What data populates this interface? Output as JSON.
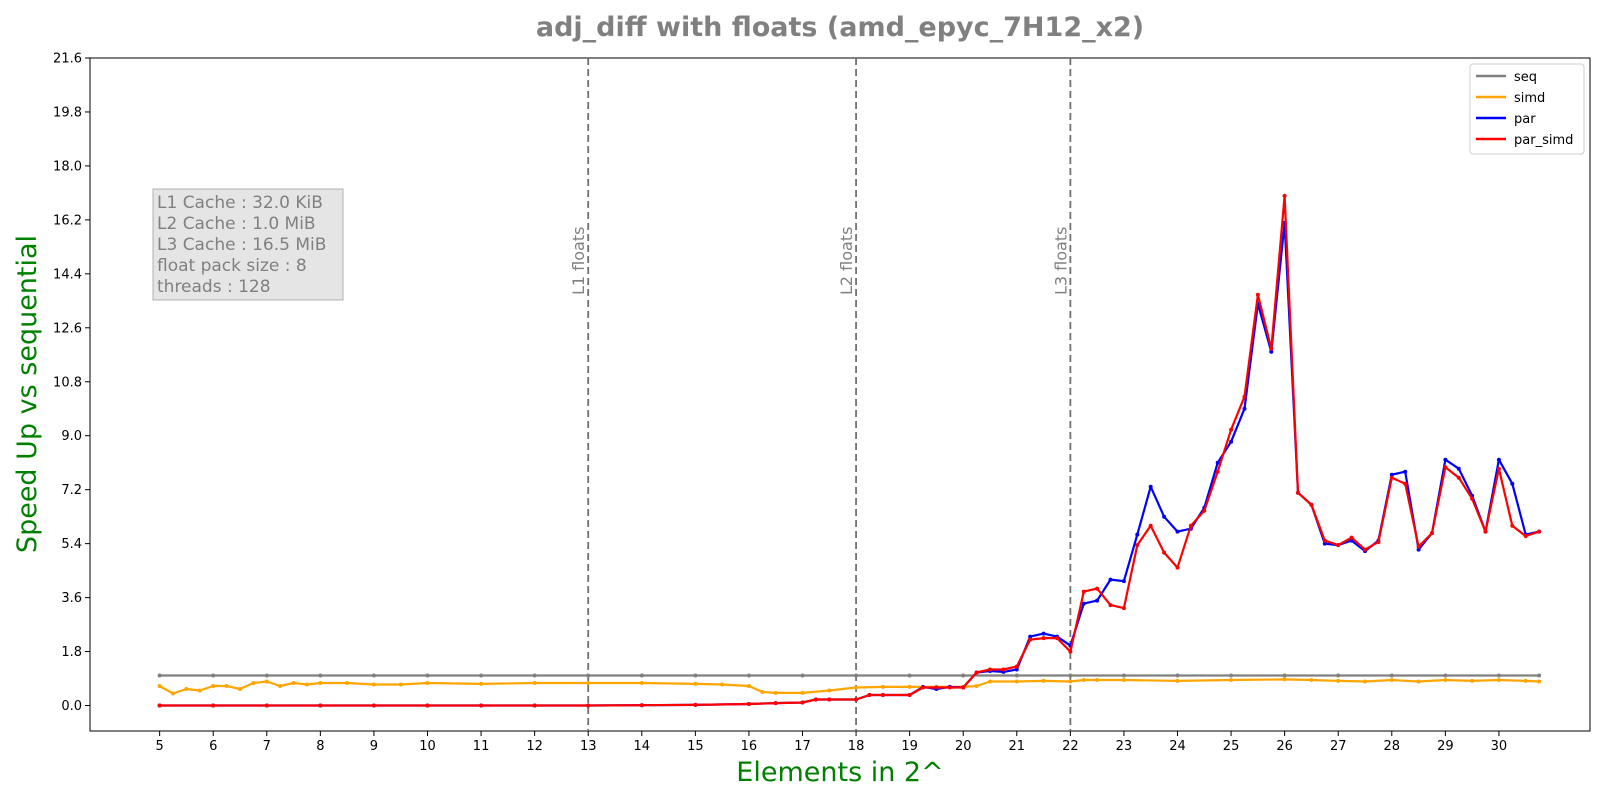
{
  "chart_data": {
    "type": "line",
    "title": "adj_diff with floats  (amd_epyc_7H12_x2)",
    "xlabel": "Elements in 2^",
    "ylabel": "Speed Up vs sequential",
    "xlim": [
      3.7,
      31.7
    ],
    "ylim": [
      -0.85,
      21.6
    ],
    "xticks": [
      5,
      6,
      7,
      8,
      9,
      10,
      11,
      12,
      13,
      14,
      15,
      16,
      17,
      18,
      19,
      20,
      21,
      22,
      23,
      24,
      25,
      26,
      27,
      28,
      29,
      30
    ],
    "yticks": [
      "0.0",
      "1.8",
      "3.6",
      "5.4",
      "7.2",
      "9.0",
      "10.8",
      "12.6",
      "14.4",
      "16.2",
      "18.0",
      "19.8",
      "21.6"
    ],
    "legend_position": "top-right",
    "grid": false,
    "cache_lines": [
      {
        "x": 13,
        "label": "L1 floats"
      },
      {
        "x": 18,
        "label": "L2 floats"
      },
      {
        "x": 22,
        "label": "L3 floats"
      }
    ],
    "info_box": [
      "L1 Cache : 32.0 KiB",
      "L2 Cache : 1.0 MiB",
      "L3 Cache : 16.5 MiB",
      "float pack size : 8",
      "threads : 128"
    ],
    "series": [
      {
        "name": "seq",
        "color": "#808080",
        "x": [
          5,
          6,
          7,
          8,
          9,
          10,
          11,
          12,
          13,
          14,
          15,
          16,
          17,
          18,
          19,
          20,
          21,
          22,
          23,
          24,
          25,
          26,
          27,
          28,
          29,
          30,
          30.75
        ],
        "y": [
          1.0,
          1.0,
          1.0,
          1.0,
          1.0,
          1.0,
          1.0,
          1.0,
          1.0,
          1.0,
          1.0,
          1.0,
          1.0,
          1.0,
          1.0,
          1.0,
          1.0,
          1.0,
          1.0,
          1.0,
          1.0,
          1.0,
          1.0,
          1.0,
          1.0,
          1.0,
          1.0
        ]
      },
      {
        "name": "simd",
        "color": "#ffa500",
        "x": [
          5,
          5.25,
          5.5,
          5.75,
          6,
          6.25,
          6.5,
          6.75,
          7,
          7.25,
          7.5,
          7.75,
          8,
          8.5,
          9,
          9.5,
          10,
          11,
          12,
          13,
          14,
          15,
          15.5,
          16,
          16.25,
          16.5,
          17,
          17.5,
          18,
          18.5,
          19,
          19.5,
          20,
          20.25,
          20.5,
          21,
          21.5,
          22,
          22.25,
          22.5,
          23,
          24,
          25,
          26,
          26.5,
          27,
          27.5,
          28,
          28.5,
          29,
          29.5,
          30,
          30.5,
          30.75
        ],
        "y": [
          0.65,
          0.4,
          0.55,
          0.5,
          0.65,
          0.65,
          0.55,
          0.75,
          0.8,
          0.65,
          0.75,
          0.7,
          0.75,
          0.75,
          0.7,
          0.7,
          0.75,
          0.72,
          0.75,
          0.75,
          0.75,
          0.72,
          0.7,
          0.65,
          0.45,
          0.42,
          0.42,
          0.5,
          0.6,
          0.62,
          0.62,
          0.62,
          0.62,
          0.65,
          0.8,
          0.8,
          0.82,
          0.8,
          0.85,
          0.85,
          0.85,
          0.82,
          0.85,
          0.87,
          0.85,
          0.82,
          0.8,
          0.85,
          0.8,
          0.85,
          0.82,
          0.85,
          0.82,
          0.8
        ]
      },
      {
        "name": "par",
        "color": "#0000ff",
        "x": [
          5,
          6,
          7,
          8,
          9,
          10,
          11,
          12,
          13,
          14,
          15,
          16,
          16.5,
          17,
          17.25,
          17.5,
          18,
          18.25,
          18.5,
          19,
          19.25,
          19.5,
          19.75,
          20,
          20.25,
          20.5,
          20.75,
          21,
          21.25,
          21.5,
          21.75,
          22,
          22.25,
          22.5,
          22.75,
          23,
          23.25,
          23.5,
          23.75,
          24,
          24.25,
          24.5,
          24.75,
          25,
          25.25,
          25.5,
          25.75,
          26,
          26.25,
          26.5,
          26.75,
          27,
          27.25,
          27.5,
          27.75,
          28,
          28.25,
          28.5,
          28.75,
          29,
          29.25,
          29.5,
          29.75,
          30,
          30.25,
          30.5,
          30.75
        ],
        "y": [
          0.0,
          0.0,
          0.0,
          0.0,
          0.0,
          0.0,
          0.0,
          0.0,
          0.0,
          0.01,
          0.02,
          0.05,
          0.08,
          0.1,
          0.2,
          0.2,
          0.2,
          0.35,
          0.35,
          0.35,
          0.62,
          0.55,
          0.62,
          0.6,
          1.1,
          1.15,
          1.12,
          1.2,
          2.3,
          2.4,
          2.3,
          2.0,
          3.4,
          3.5,
          4.2,
          4.15,
          5.7,
          7.3,
          6.3,
          5.8,
          5.9,
          6.6,
          8.1,
          8.8,
          9.9,
          13.4,
          11.8,
          16.1,
          7.1,
          6.7,
          5.4,
          5.35,
          5.5,
          5.15,
          5.5,
          7.7,
          7.8,
          5.2,
          5.75,
          8.2,
          7.9,
          7.0,
          5.8,
          8.2,
          7.4,
          5.7,
          5.8
        ]
      },
      {
        "name": "par_simd",
        "color": "#ff0000",
        "x": [
          5,
          6,
          7,
          8,
          9,
          10,
          11,
          12,
          13,
          14,
          15,
          16,
          16.5,
          17,
          17.25,
          17.5,
          18,
          18.25,
          18.5,
          19,
          19.25,
          19.5,
          19.75,
          20,
          20.25,
          20.5,
          20.75,
          21,
          21.25,
          21.5,
          21.75,
          22,
          22.25,
          22.5,
          22.75,
          23,
          23.25,
          23.5,
          23.75,
          24,
          24.25,
          24.5,
          24.75,
          25,
          25.25,
          25.5,
          25.75,
          26,
          26.25,
          26.5,
          26.75,
          27,
          27.25,
          27.5,
          27.75,
          28,
          28.25,
          28.5,
          28.75,
          29,
          29.25,
          29.5,
          29.75,
          30,
          30.25,
          30.5,
          30.75
        ],
        "y": [
          0.0,
          0.0,
          0.0,
          0.0,
          0.0,
          0.0,
          0.0,
          0.0,
          0.0,
          0.01,
          0.02,
          0.05,
          0.08,
          0.1,
          0.2,
          0.2,
          0.2,
          0.35,
          0.35,
          0.35,
          0.6,
          0.6,
          0.6,
          0.6,
          1.1,
          1.2,
          1.2,
          1.3,
          2.2,
          2.25,
          2.25,
          1.8,
          3.8,
          3.9,
          3.35,
          3.25,
          5.35,
          6.0,
          5.1,
          4.6,
          6.0,
          6.5,
          7.8,
          9.2,
          10.3,
          13.7,
          11.9,
          17.0,
          7.1,
          6.7,
          5.5,
          5.35,
          5.6,
          5.2,
          5.45,
          7.6,
          7.4,
          5.3,
          5.75,
          7.95,
          7.6,
          6.9,
          5.8,
          7.9,
          6.0,
          5.65,
          5.8
        ]
      }
    ]
  }
}
